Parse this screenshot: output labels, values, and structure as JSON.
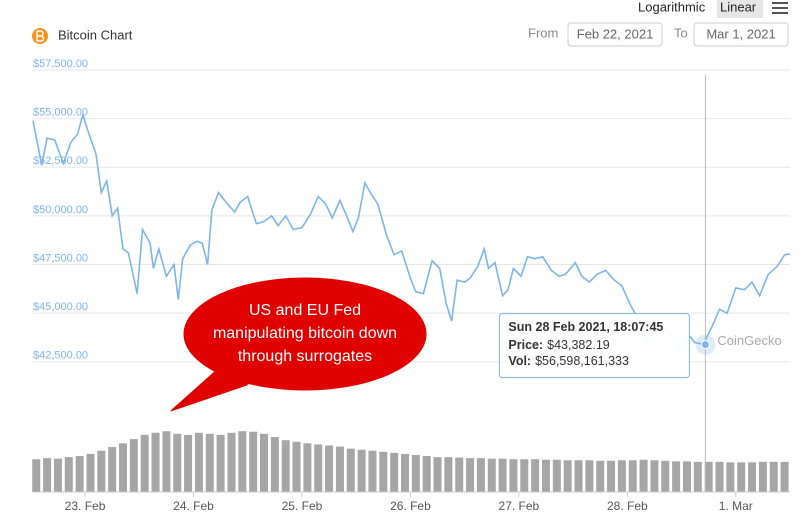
{
  "header": {
    "title": "Bitcoin Chart",
    "from_label": "From",
    "from": "Feb 22, 2021",
    "to_label": "To",
    "to": "Mar 1, 2021",
    "scale_options": [
      "Logarithmic",
      "Linear"
    ],
    "selected_scale": "Linear"
  },
  "chart_data": {
    "type": "line",
    "log_scale": false,
    "grid": true,
    "x": [
      22.52,
      22.6,
      22.65,
      22.72,
      22.8,
      22.87,
      22.93,
      22.98,
      23.03,
      23.1,
      23.15,
      23.2,
      23.25,
      23.3,
      23.35,
      23.4,
      23.48,
      23.53,
      23.6,
      23.63,
      23.68,
      23.75,
      23.82,
      23.86,
      23.9,
      23.97,
      24.03,
      24.08,
      24.13,
      24.17,
      24.23,
      24.3,
      24.38,
      24.43,
      24.5,
      24.55,
      24.58,
      24.65,
      24.72,
      24.78,
      24.85,
      24.92,
      25.0,
      25.08,
      25.15,
      25.22,
      25.28,
      25.35,
      25.42,
      25.47,
      25.52,
      25.58,
      25.63,
      25.7,
      25.78,
      25.85,
      25.92,
      26.0,
      26.05,
      26.12,
      26.2,
      26.27,
      26.33,
      26.38,
      26.43,
      26.5,
      26.55,
      26.62,
      26.68,
      26.72,
      26.78,
      26.85,
      26.9,
      26.95,
      27.02,
      27.08,
      27.15,
      27.22,
      27.3,
      27.37,
      27.43,
      27.52,
      27.58,
      27.65,
      27.72,
      27.8,
      27.88,
      27.95,
      28.03,
      28.1,
      28.17,
      28.25,
      28.32,
      28.4,
      28.5,
      28.58,
      28.62,
      28.7,
      28.78,
      28.85,
      28.92,
      29.0,
      29.08,
      29.15,
      29.22,
      29.3,
      29.38,
      29.45,
      29.5
    ],
    "series": [
      {
        "color": "#7cb5ec",
        "values": [
          54900,
          52600,
          54000,
          53900,
          52700,
          53800,
          54200,
          55200,
          54300,
          53200,
          51200,
          51800,
          50000,
          50400,
          48300,
          48100,
          46000,
          49300,
          48600,
          47300,
          48300,
          46900,
          47500,
          45700,
          47800,
          48500,
          48700,
          48600,
          47500,
          50300,
          51200,
          50700,
          50200,
          50700,
          51000,
          50100,
          49600,
          49700,
          50000,
          49500,
          50000,
          49300,
          49400,
          50100,
          51000,
          50600,
          49900,
          50800,
          49900,
          49200,
          49900,
          51700,
          51200,
          50600,
          49000,
          48000,
          48200,
          46800,
          46100,
          46000,
          47700,
          47300,
          45500,
          44600,
          46700,
          46600,
          46800,
          47400,
          48300,
          47300,
          47600,
          45900,
          46200,
          47300,
          46900,
          47900,
          47800,
          47900,
          47200,
          46900,
          47000,
          47600,
          46900,
          46600,
          47000,
          47200,
          46700,
          46400,
          45400,
          44700,
          43500,
          44300,
          44500,
          43900,
          43100,
          43800,
          43500,
          43400,
          44300,
          45200,
          45000,
          46300,
          46200,
          46600,
          45900,
          47000,
          47400,
          48000,
          48050
        ]
      }
    ],
    "volume": {
      "axis": "y2",
      "color": "#a6a6a6",
      "x": [
        22.55,
        22.65,
        22.75,
        22.85,
        22.95,
        23.05,
        23.15,
        23.25,
        23.35,
        23.45,
        23.55,
        23.65,
        23.75,
        23.85,
        23.95,
        24.05,
        24.15,
        24.25,
        24.35,
        24.45,
        24.55,
        24.65,
        24.75,
        24.85,
        24.95,
        25.05,
        25.15,
        25.25,
        25.35,
        25.45,
        25.55,
        25.65,
        25.75,
        25.85,
        25.95,
        26.05,
        26.15,
        26.25,
        26.35,
        26.45,
        26.55,
        26.65,
        26.75,
        26.85,
        26.95,
        27.05,
        27.15,
        27.25,
        27.35,
        27.45,
        27.55,
        27.65,
        27.75,
        27.85,
        27.95,
        28.05,
        28.15,
        28.25,
        28.35,
        28.45,
        28.55,
        28.65,
        28.75,
        28.85,
        28.95,
        29.05,
        29.15,
        29.25,
        29.35,
        29.45
      ],
      "values": [
        62000000000,
        64000000000,
        63000000000,
        66000000000,
        68000000000,
        72000000000,
        78000000000,
        85000000000,
        92000000000,
        100000000000,
        108000000000,
        112000000000,
        115000000000,
        110000000000,
        108000000000,
        112000000000,
        110000000000,
        108000000000,
        112000000000,
        115000000000,
        114000000000,
        110000000000,
        104000000000,
        98000000000,
        95000000000,
        92000000000,
        90000000000,
        88000000000,
        86000000000,
        82000000000,
        80000000000,
        78000000000,
        76000000000,
        74000000000,
        72000000000,
        70000000000,
        68000000000,
        66000000000,
        66000000000,
        65000000000,
        64000000000,
        64000000000,
        63000000000,
        63000000000,
        62000000000,
        62000000000,
        62000000000,
        61000000000,
        61000000000,
        60000000000,
        60000000000,
        60000000000,
        59000000000,
        59000000000,
        60000000000,
        60000000000,
        61000000000,
        60000000000,
        59000000000,
        58000000000,
        58000000000,
        57000000000,
        57000000000,
        57000000000,
        56000000000,
        56000000000,
        56000000000,
        57000000000,
        57000000000,
        57000000000
      ]
    },
    "xlim": [
      22.52,
      29.5
    ],
    "xticks": [
      {
        "value": 23,
        "label": "23. Feb"
      },
      {
        "value": 24,
        "label": "24. Feb"
      },
      {
        "value": 25,
        "label": "25. Feb"
      },
      {
        "value": 26,
        "label": "26. Feb"
      },
      {
        "value": 27,
        "label": "27. Feb"
      },
      {
        "value": 28,
        "label": "28. Feb"
      },
      {
        "value": 29,
        "label": "1. Mar"
      }
    ],
    "ylim": [
      41000,
      57500
    ],
    "yticks": [
      {
        "value": 42500,
        "label": "$42,500.00"
      },
      {
        "value": 45000,
        "label": "$45,000.00"
      },
      {
        "value": 47500,
        "label": "$47,500.00"
      },
      {
        "value": 50000,
        "label": "$50,000.00"
      },
      {
        "value": 52500,
        "label": "$52,500.00"
      },
      {
        "value": 55000,
        "label": "$55,000.00"
      },
      {
        "value": 57500,
        "label": "$57,500.00"
      }
    ],
    "y2lim": [
      0,
      174000000000
    ],
    "tooltip": {
      "x": 28.72,
      "y": 43382.19,
      "title": "Sun 28 Feb 2021, 18:07:45",
      "rows": [
        {
          "label": "Price:",
          "value": "$43,382.19"
        },
        {
          "label": "Vol:",
          "value": "$56,598,161,333"
        }
      ]
    },
    "watermark": "CoinGecko",
    "annotation": {
      "lines": [
        "US and EU Fed",
        "manipulating bitcoin down",
        "through surrogates"
      ],
      "color": "#e00000"
    }
  }
}
